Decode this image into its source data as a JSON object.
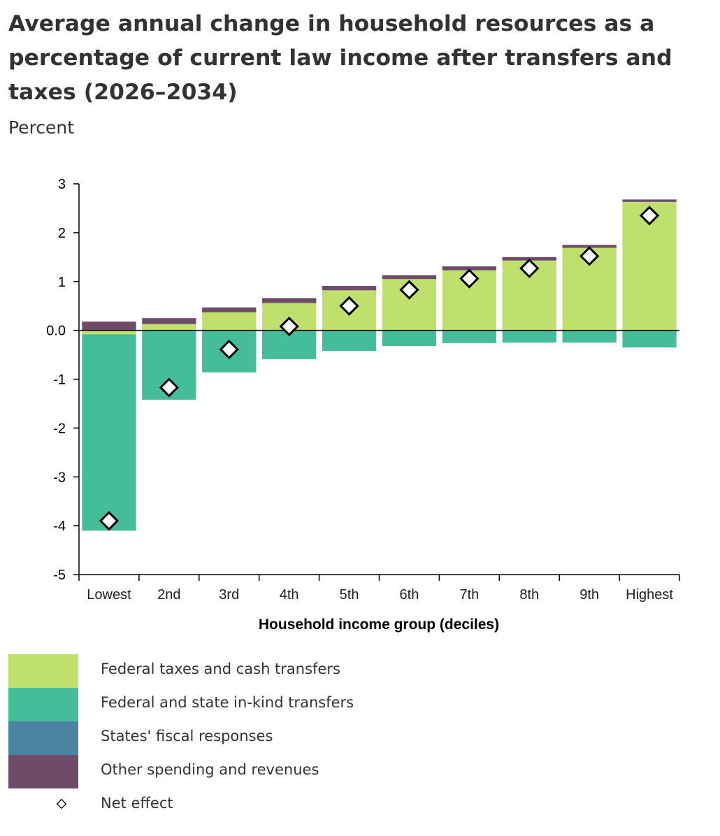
{
  "chart_data": {
    "type": "bar",
    "stacked": true,
    "title": "Average annual change in household resources as a percentage of current law income after transfers and taxes (2026–2034)",
    "subtitle": "Percent",
    "xlabel": "Household income group (deciles)",
    "ylabel": "",
    "ylim": [
      -5,
      3
    ],
    "yticks": [
      "3",
      "2",
      "1",
      "0.0",
      "-1",
      "-2",
      "-3",
      "-4",
      "-5"
    ],
    "categories": [
      "Lowest",
      "2nd",
      "3rd",
      "4th",
      "5th",
      "6th",
      "7th",
      "8th",
      "9th",
      "Highest"
    ],
    "grid": false,
    "legend_position": "bottom",
    "series": [
      {
        "name": "Federal taxes and cash transfers",
        "color": "#bfe06c",
        "values": [
          -0.08,
          0.13,
          0.37,
          0.56,
          0.82,
          1.05,
          1.23,
          1.43,
          1.69,
          2.63
        ]
      },
      {
        "name": "Federal and state in-kind transfers",
        "color": "#46bd99",
        "values": [
          -4.02,
          -1.42,
          -0.86,
          -0.59,
          -0.42,
          -0.32,
          -0.26,
          -0.25,
          -0.25,
          -0.35
        ]
      },
      {
        "name": "States' fiscal responses",
        "color": "#4a84a0",
        "values": [
          0,
          0,
          0,
          0,
          0,
          0,
          0,
          0,
          0,
          0
        ]
      },
      {
        "name": "Other spending and revenues",
        "color": "#6e4b69",
        "values": [
          0.18,
          0.12,
          0.1,
          0.1,
          0.09,
          0.08,
          0.08,
          0.07,
          0.06,
          0.05
        ]
      }
    ],
    "net_effect": {
      "name": "Net effect",
      "values": [
        -3.9,
        -1.17,
        -0.39,
        0.08,
        0.5,
        0.83,
        1.06,
        1.27,
        1.52,
        2.35
      ]
    }
  }
}
